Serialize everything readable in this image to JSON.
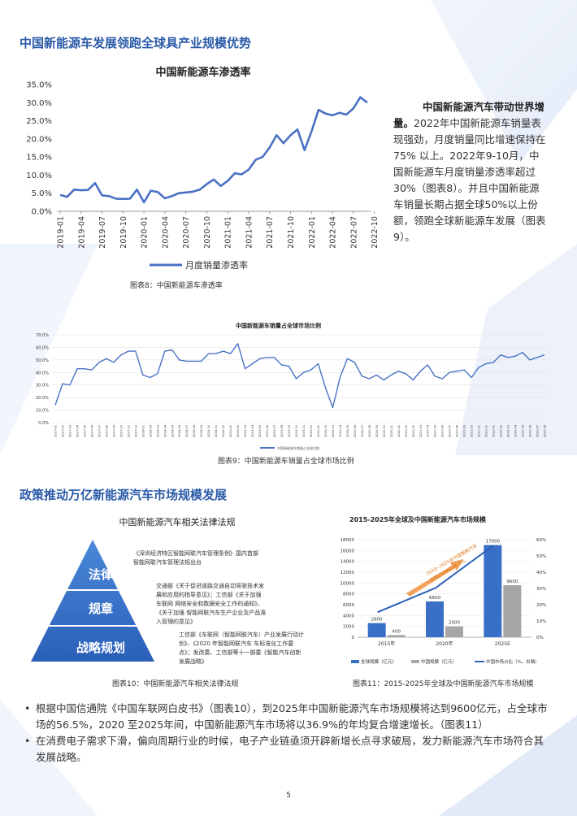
{
  "section1": {
    "heading": "中国新能源车发展领跑全球具产业规模优势"
  },
  "chart8": {
    "title": "中国新能源车渗透率",
    "legend": "月度销量渗透率",
    "caption": "图表8：中国新能源车渗透率"
  },
  "side_text": {
    "lead": "中国新能源汽车带动世界增量。",
    "body": "2022年中国新能源车销量表现强劲，月度销量同比增速保持在75% 以上。2022年9-10月，中国新能源车月度销量渗透率超过30%（图表8）。并且中国新能源车销量长期占据全球50%以上份额，领跑全球新能源车发展（图表9）。"
  },
  "chart9": {
    "title": "中国新能源车销量占全球市场比例",
    "legend": "中国新能源车销量占全球比例",
    "caption": "图表9：中国新能源车销量占全球市场比例"
  },
  "section2": {
    "heading": "政策推动万亿新能源汽车市场规模发展"
  },
  "figure10": {
    "title": "中国新能源汽车相关法律法规",
    "tiers": [
      "法律",
      "规章",
      "战略规划"
    ],
    "notes": [
      "《深圳经济特区智能网联汽车管理条例》国内首部智能网联汽车管理法规出台",
      "交通部《关于促进道路交通自动驾驶技术发展和应用的指导意见》；工信部《关于加强车联网 网络安全和数据安全工作的通知》、《关于加强 智能网联汽车生产企业及产品准入管理的意见》",
      "工信部《车联网（智能网联汽车）产业发展行动计划》、《2020 年智能网联汽车 车标准化工作要点》；发改委、工信部等十一部委《智能汽车创新发展战略》"
    ],
    "caption": "图表10：中国新能源汽车相关法律法规"
  },
  "chart11": {
    "title": "2015-2025年全球及中国新能源汽车市场规模",
    "annotation_line1": "2020~2025年中国智能汽车",
    "annotation_line2": "市场CAGR达36.9%",
    "legend": [
      "全球规模（亿元）",
      "中国规模（亿元）",
      "中国市场占比（%，右轴）"
    ],
    "caption": "图表11：2015-2025年全球及中国新能源汽车市场规模"
  },
  "bullets": [
    "根据中国信通院《中国车联网白皮书》（图表10），到2025年中国新能源汽车市场规模将达到9600亿元，占全球市场的56.5%，2020 至2025年间，中国新能源汽车市场将以36.9%的年均复合增速增长。（图表11）",
    "在消费电子需求下滑，偏向周期行业的时候，电子产业链亟须开辟新增长点寻求破局，发力新能源汽车市场符合其发展战略。"
  ],
  "page_number": "5",
  "chart_data": [
    {
      "type": "line",
      "title": "中国新能源车渗透率",
      "ylim": [
        0,
        35
      ],
      "yticks": [
        "0.0%",
        "5.0%",
        "10.0%",
        "15.0%",
        "20.0%",
        "25.0%",
        "30.0%",
        "35.0%"
      ],
      "xticks": [
        "2019-01",
        "2019-04",
        "2019-07",
        "2019-10",
        "2020-01",
        "2020-04",
        "2020-07",
        "2020-10",
        "2021-01",
        "2021-04",
        "2021-07",
        "2021-10",
        "2022-01",
        "2022-04",
        "2022-07",
        "2022-10"
      ],
      "series": [
        {
          "name": "月度销量渗透率",
          "color": "#4a72c4",
          "values": [
            4.5,
            4.0,
            6.0,
            5.8,
            5.9,
            7.8,
            4.4,
            4.2,
            3.5,
            3.4,
            3.5,
            6.0,
            2.5,
            5.7,
            5.3,
            3.6,
            4.2,
            5.0,
            5.2,
            5.4,
            6.0,
            7.5,
            8.8,
            7.0,
            8.4,
            10.5,
            10.2,
            11.5,
            14.2,
            15.0,
            17.6,
            21.0,
            18.8,
            21.0,
            22.6,
            16.9,
            22.0,
            28.0,
            27.0,
            26.5,
            27.2,
            26.7,
            28.4,
            31.5,
            30.0
          ]
        }
      ]
    },
    {
      "type": "line",
      "title": "中国新能源车销量占全球市场比例",
      "ylim": [
        0,
        70
      ],
      "yticks": [
        "0.0%",
        "10.0%",
        "20.0%",
        "30.0%",
        "40.0%",
        "50.0%",
        "60.0%",
        "70.0%"
      ],
      "xticks": [
        "2017-01",
        "2017-02",
        "2017-03",
        "2017-04",
        "2017-05",
        "2017-06",
        "2017-07",
        "2017-08",
        "2017-09",
        "2017-10",
        "2017-11",
        "2017-12",
        "2018-01",
        "2018-02",
        "2018-03",
        "2018-04",
        "2018-05",
        "2018-06",
        "2018-07",
        "2018-08",
        "2018-09",
        "2018-10",
        "2018-11",
        "2018-12",
        "2019-01",
        "2019-02",
        "2019-03",
        "2019-04",
        "2019-05",
        "2019-06",
        "2019-07",
        "2019-08",
        "2019-09",
        "2019-10",
        "2019-11",
        "2019-12",
        "2020-01",
        "2020-02",
        "2020-03",
        "2020-04",
        "2020-05",
        "2020-06",
        "2020-07",
        "2020-08",
        "2020-09",
        "2020-10",
        "2020-11",
        "2020-12",
        "2021-01",
        "2021-02",
        "2021-03",
        "2021-04",
        "2021-05",
        "2021-06",
        "2021-07",
        "2021-08",
        "2021-09",
        "2021-10",
        "2021-11",
        "2021-12",
        "2022-01",
        "2022-02",
        "2022-03",
        "2022-04",
        "2022-05",
        "2022-06",
        "2022-07",
        "2022-08"
      ],
      "series": [
        {
          "name": "中国新能源车销量占全球比例",
          "color": "#4a72c4",
          "values": [
            14,
            31,
            30,
            43,
            43,
            42,
            48,
            51,
            48,
            54,
            57,
            57,
            38,
            36,
            39,
            57,
            58,
            50,
            49,
            49,
            49,
            55,
            55,
            57,
            55,
            63,
            43,
            47,
            51,
            52,
            52,
            46,
            45,
            35,
            40,
            42,
            47,
            28,
            12,
            36,
            51,
            48,
            37,
            35,
            38,
            34,
            38,
            41,
            39,
            34,
            41,
            46,
            37,
            35,
            40,
            41,
            42,
            36,
            44,
            47,
            48,
            54,
            52,
            53,
            56,
            50,
            52,
            54
          ]
        }
      ]
    },
    {
      "type": "bar",
      "title": "2015-2025年全球及中国新能源汽车市场规模",
      "categories": [
        "2015年",
        "2020年",
        "2025E"
      ],
      "ylim": [
        0,
        18000
      ],
      "yticks": [
        "0",
        "2000",
        "4000",
        "6000",
        "8000",
        "10000",
        "12000",
        "14000",
        "16000",
        "18000"
      ],
      "y2lim": [
        0,
        60
      ],
      "y2ticks": [
        "0%",
        "10%",
        "20%",
        "30%",
        "40%",
        "50%",
        "60%"
      ],
      "series": [
        {
          "name": "全球规模（亿元）",
          "color": "#3a6fc8",
          "values": [
            2600,
            6600,
            17000
          ]
        },
        {
          "name": "中国规模（亿元）",
          "color": "#a6a6a6",
          "values": [
            400,
            2000,
            9600
          ]
        },
        {
          "name": "中国市场占比（%，右轴）",
          "color": "#3a6fc8",
          "axis": "right",
          "values": [
            15.4,
            30.3,
            56.5
          ]
        }
      ]
    }
  ]
}
